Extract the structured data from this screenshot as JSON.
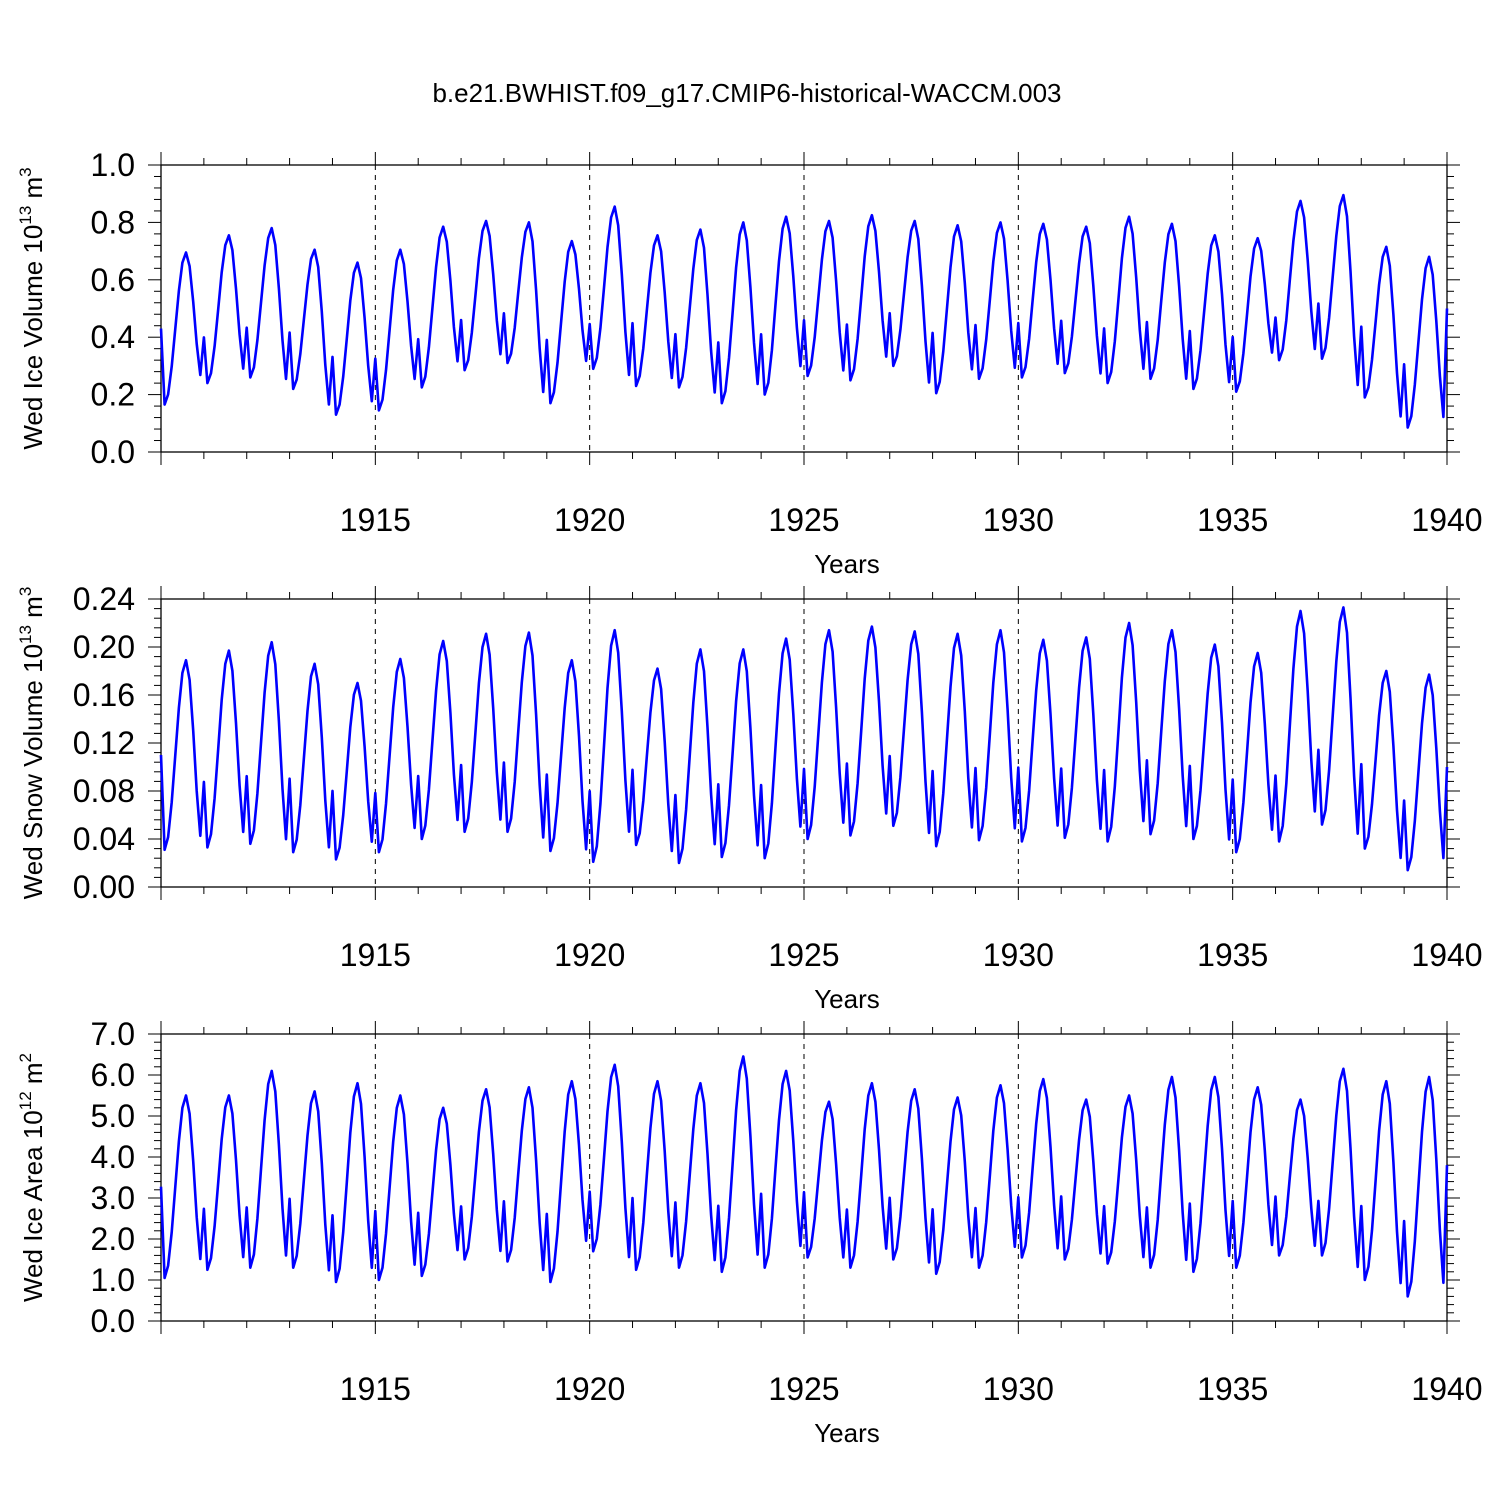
{
  "title": "b.e21.BWHIST.f09_g17.CMIP6-historical-WACCM.003",
  "line_color": "#0000ff",
  "chart_data": [
    {
      "type": "line",
      "xlabel": "Years",
      "ylabel": {
        "prefix": "Wed Ice Volume 10",
        "exponent": "13",
        "unit": "m",
        "unit_exponent": "3"
      },
      "xlim": [
        1910,
        1940
      ],
      "ylim": [
        0.0,
        1.0
      ],
      "xticks": [
        "1915",
        "1920",
        "1925",
        "1930",
        "1935",
        "1940"
      ],
      "yticks": [
        "0.0",
        "0.2",
        "0.4",
        "0.6",
        "0.8",
        "1.0"
      ],
      "grid": "dashed vertical lines at 1915, 1920, 1925, 1930, 1935",
      "monthly": true,
      "minima": [
        0.165,
        0.24,
        0.26,
        0.22,
        0.13,
        0.145,
        0.225,
        0.285,
        0.31,
        0.17,
        0.29,
        0.23,
        0.225,
        0.17,
        0.2,
        0.265,
        0.25,
        0.3,
        0.205,
        0.255,
        0.26,
        0.275,
        0.24,
        0.255,
        0.22,
        0.21,
        0.32,
        0.325,
        0.19,
        0.085
      ],
      "maxima": [
        0.695,
        0.755,
        0.78,
        0.705,
        0.66,
        0.705,
        0.785,
        0.805,
        0.8,
        0.735,
        0.855,
        0.755,
        0.775,
        0.8,
        0.82,
        0.805,
        0.825,
        0.805,
        0.79,
        0.8,
        0.795,
        0.785,
        0.82,
        0.795,
        0.755,
        0.745,
        0.875,
        0.895,
        0.715,
        0.68
      ],
      "final_value": 0.5
    },
    {
      "type": "line",
      "xlabel": "Years",
      "ylabel": {
        "prefix": "Wed Snow Volume 10",
        "exponent": "13",
        "unit": "m",
        "unit_exponent": "3"
      },
      "xlim": [
        1910,
        1940
      ],
      "ylim": [
        0.0,
        0.24
      ],
      "xticks": [
        "1915",
        "1920",
        "1925",
        "1930",
        "1935",
        "1940"
      ],
      "yticks": [
        "0.00",
        "0.04",
        "0.08",
        "0.12",
        "0.16",
        "0.20",
        "0.24"
      ],
      "grid": "dashed vertical lines at 1915, 1920, 1925, 1930, 1935",
      "monthly": true,
      "minima": [
        0.031,
        0.033,
        0.036,
        0.029,
        0.023,
        0.029,
        0.04,
        0.046,
        0.046,
        0.03,
        0.021,
        0.035,
        0.02,
        0.025,
        0.024,
        0.04,
        0.043,
        0.051,
        0.034,
        0.039,
        0.038,
        0.041,
        0.038,
        0.044,
        0.04,
        0.029,
        0.038,
        0.052,
        0.032,
        0.014
      ],
      "maxima": [
        0.189,
        0.197,
        0.204,
        0.186,
        0.17,
        0.19,
        0.205,
        0.211,
        0.212,
        0.189,
        0.214,
        0.182,
        0.198,
        0.198,
        0.207,
        0.214,
        0.217,
        0.213,
        0.211,
        0.214,
        0.206,
        0.208,
        0.22,
        0.214,
        0.202,
        0.195,
        0.23,
        0.233,
        0.18,
        0.177
      ],
      "final_value": 0.1
    },
    {
      "type": "line",
      "xlabel": "Years",
      "ylabel": {
        "prefix": "Wed Ice Area 10",
        "exponent": "12",
        "unit": "m",
        "unit_exponent": "2"
      },
      "xlim": [
        1910,
        1940
      ],
      "ylim": [
        0.0,
        7.0
      ],
      "xticks": [
        "1915",
        "1920",
        "1925",
        "1930",
        "1935",
        "1940"
      ],
      "yticks": [
        "0.0",
        "1.0",
        "2.0",
        "3.0",
        "4.0",
        "5.0",
        "6.0",
        "7.0"
      ],
      "grid": "dashed vertical lines at 1915, 1920, 1925, 1930, 1935",
      "monthly": true,
      "minima": [
        1.05,
        1.25,
        1.3,
        1.3,
        0.95,
        1.0,
        1.1,
        1.5,
        1.45,
        0.95,
        1.7,
        1.25,
        1.3,
        1.2,
        1.3,
        1.55,
        1.3,
        1.5,
        1.15,
        1.3,
        1.55,
        1.5,
        1.4,
        1.3,
        1.2,
        1.3,
        1.6,
        1.6,
        1.0,
        0.6
      ],
      "maxima": [
        5.5,
        5.5,
        6.1,
        5.6,
        5.8,
        5.5,
        5.2,
        5.65,
        5.7,
        5.85,
        6.25,
        5.85,
        5.8,
        6.45,
        6.1,
        5.35,
        5.8,
        5.65,
        5.45,
        5.75,
        5.9,
        5.4,
        5.5,
        5.95,
        5.95,
        5.7,
        5.4,
        6.15,
        5.85,
        5.95
      ],
      "final_value": 3.8
    }
  ]
}
